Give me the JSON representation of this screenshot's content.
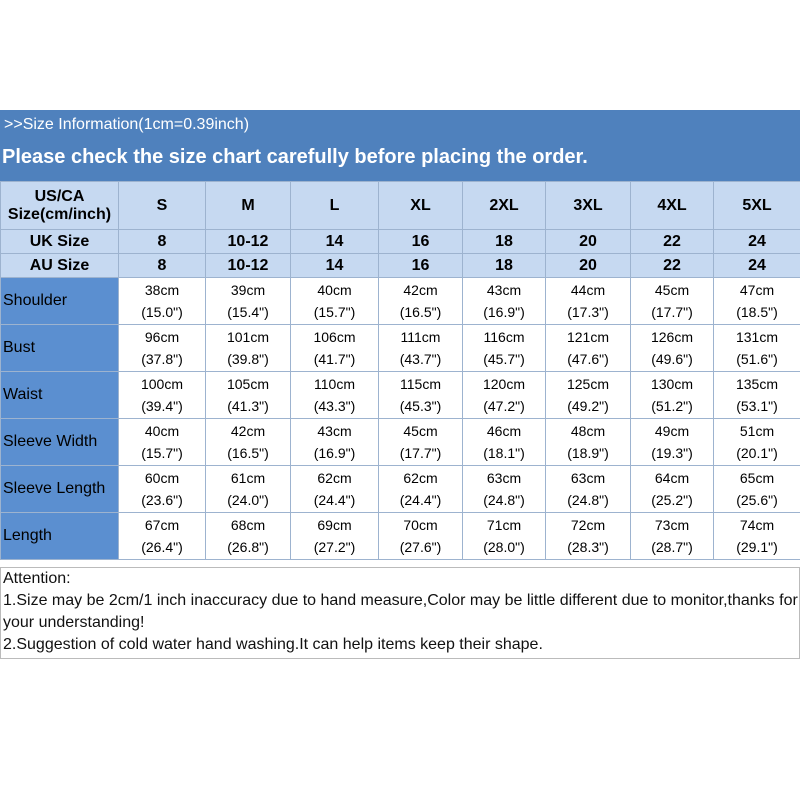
{
  "header": {
    "info": ">>Size Information(1cm=0.39inch)",
    "notice": "Please check the size chart carefully before placing the order."
  },
  "table": {
    "corner": [
      "US/CA",
      "Size(cm/inch)"
    ],
    "columns": [
      "S",
      "M",
      "L",
      "XL",
      "2XL",
      "3XL",
      "4XL",
      "5XL"
    ],
    "size_rows": [
      {
        "label": "UK Size",
        "values": [
          "8",
          "10-12",
          "14",
          "16",
          "18",
          "20",
          "22",
          "24"
        ]
      },
      {
        "label": "AU Size",
        "values": [
          "8",
          "10-12",
          "14",
          "16",
          "18",
          "20",
          "22",
          "24"
        ]
      }
    ],
    "rows": [
      {
        "label": "Shoulder",
        "cm": [
          "38cm",
          "39cm",
          "40cm",
          "42cm",
          "43cm",
          "44cm",
          "45cm",
          "47cm"
        ],
        "inch": [
          "(15.0\")",
          "(15.4\")",
          "(15.7\")",
          "(16.5\")",
          "(16.9\")",
          "(17.3\")",
          "(17.7\")",
          "(18.5\")"
        ]
      },
      {
        "label": "Bust",
        "cm": [
          "96cm",
          "101cm",
          "106cm",
          "111cm",
          "116cm",
          "121cm",
          "126cm",
          "131cm"
        ],
        "inch": [
          "(37.8\")",
          "(39.8\")",
          "(41.7\")",
          "(43.7\")",
          "(45.7\")",
          "(47.6\")",
          "(49.6\")",
          "(51.6\")"
        ]
      },
      {
        "label": "Waist",
        "cm": [
          "100cm",
          "105cm",
          "110cm",
          "115cm",
          "120cm",
          "125cm",
          "130cm",
          "135cm"
        ],
        "inch": [
          "(39.4\")",
          "(41.3\")",
          "(43.3\")",
          "(45.3\")",
          "(47.2\")",
          "(49.2\")",
          "(51.2\")",
          "(53.1\")"
        ]
      },
      {
        "label": "Sleeve Width",
        "cm": [
          "40cm",
          "42cm",
          "43cm",
          "45cm",
          "46cm",
          "48cm",
          "49cm",
          "51cm"
        ],
        "inch": [
          "(15.7\")",
          "(16.5\")",
          "(16.9\")",
          "(17.7\")",
          "(18.1\")",
          "(18.9\")",
          "(19.3\")",
          "(20.1\")"
        ]
      },
      {
        "label": "Sleeve Length",
        "cm": [
          "60cm",
          "61cm",
          "62cm",
          "62cm",
          "63cm",
          "63cm",
          "64cm",
          "65cm"
        ],
        "inch": [
          "(23.6\")",
          "(24.0\")",
          "(24.4\")",
          "(24.4\")",
          "(24.8\")",
          "(24.8\")",
          "(25.2\")",
          "(25.6\")"
        ]
      },
      {
        "label": "Length",
        "cm": [
          "67cm",
          "68cm",
          "69cm",
          "70cm",
          "71cm",
          "72cm",
          "73cm",
          "74cm"
        ],
        "inch": [
          "(26.4\")",
          "(26.8\")",
          "(27.2\")",
          "(27.6\")",
          "(28.0\")",
          "(28.3\")",
          "(28.7\")",
          "(29.1\")"
        ]
      }
    ]
  },
  "notes": {
    "title": "Attention:",
    "items": [
      "1.Size may be 2cm/1 inch inaccuracy due to hand measure,Color may be little different due to monitor,thanks for your understanding!",
      "2.Suggestion of cold water hand washing.It can help items keep their shape."
    ]
  }
}
